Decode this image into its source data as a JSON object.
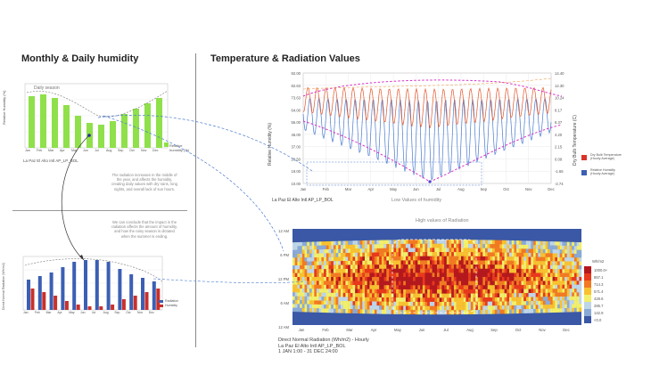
{
  "left_section": {
    "title": "Monthly  & Daily humidity",
    "chart1": {
      "inner_label": "Daily season",
      "y_axis_label": "Relative Humidity (%)",
      "months": [
        "Jan",
        "Feb",
        "Mar",
        "Apr",
        "May",
        "Jun",
        "Jul",
        "Aug",
        "Sep",
        "Oct",
        "Nov",
        "Dec"
      ],
      "legend_text": "Relative humidity (%)",
      "station": "La Paz El Alto Intl AP_LP_BOL",
      "color": "#8fe04a"
    },
    "note1": "The radiation increases in the middle of the year, and affects the humidity, creating daily values with dry rains, long nights, and overall lack of sun hours.",
    "note2": "We can conclude that the impact in the radiation affects the amount of humidity, and how the rainy season is dictated when the summer is ending.",
    "chart2": {
      "y_axis_label": "Direct Normal Radiation (Wh/m2)",
      "months": [
        "Jan",
        "Feb",
        "Mar",
        "Apr",
        "May",
        "Jun",
        "Jul",
        "Aug",
        "Sep",
        "Oct",
        "Nov",
        "Dec"
      ],
      "legend_items": [
        "Radiation",
        "Humidity"
      ],
      "blue": "#3b5fb4",
      "red": "#c9302c"
    }
  },
  "right_section": {
    "title": "Temperature & Radiation Values",
    "chart3": {
      "y_left_label": "Relative Humidity (%)",
      "y_right_label": "Dry Bulb Temperature (C)",
      "y_left_ticks": [
        "92.00",
        "82.63",
        "73.63",
        "64.00",
        "55.00",
        "46.00",
        "37.00",
        "28.50",
        "19.00",
        "10.00"
      ],
      "y_right_ticks": [
        "14.40",
        "12.30",
        "10.24",
        "8.17",
        "6.37",
        "4.20",
        "2.15",
        "0.09",
        "-1.65",
        "-2.74"
      ],
      "months": [
        "Jan",
        "Feb",
        "Mar",
        "Apr",
        "May",
        "Jun",
        "Jul",
        "Aug",
        "Sep",
        "Oct",
        "Nov",
        "Dec"
      ],
      "legend": [
        {
          "label": "Dry Bulb Temperature (Hourly Average)",
          "color": "#d9342b"
        },
        {
          "label": "Relative Humidity (Hourly Average)",
          "color": "#3b5fb4"
        }
      ],
      "station": "La Paz El Alto Intl AP_LP_BOL",
      "annotation": "Low Values of humidity"
    },
    "chart4": {
      "annotation": "High values of Radiation",
      "y_ticks": [
        "12 AM",
        "6 PM",
        "12 PM",
        "6 AM",
        "12 AM"
      ],
      "months": [
        "Jan",
        "Feb",
        "Mar",
        "Apr",
        "May",
        "Jun",
        "Jul",
        "Aug",
        "Sep",
        "Oct",
        "Nov",
        "Dec"
      ],
      "legend_title": "Wh/m2",
      "legend_values": [
        "1000.0+",
        "857.1",
        "714.3",
        "571.4",
        "428.6",
        "285.7",
        "142.9",
        "<0.0"
      ],
      "legend_colors": [
        "#b5181c",
        "#e8391b",
        "#f27a22",
        "#f9c130",
        "#f2ef6a",
        "#bfd6e8",
        "#8aaad6",
        "#3a58a6"
      ],
      "caption_lines": [
        "Direct Normal Radiation (Wh/m2) - Hourly",
        "La Paz El Alto Intl AP_LP_BOL",
        "1 JAN 1:00 - 31 DEC 24:00"
      ]
    }
  }
}
